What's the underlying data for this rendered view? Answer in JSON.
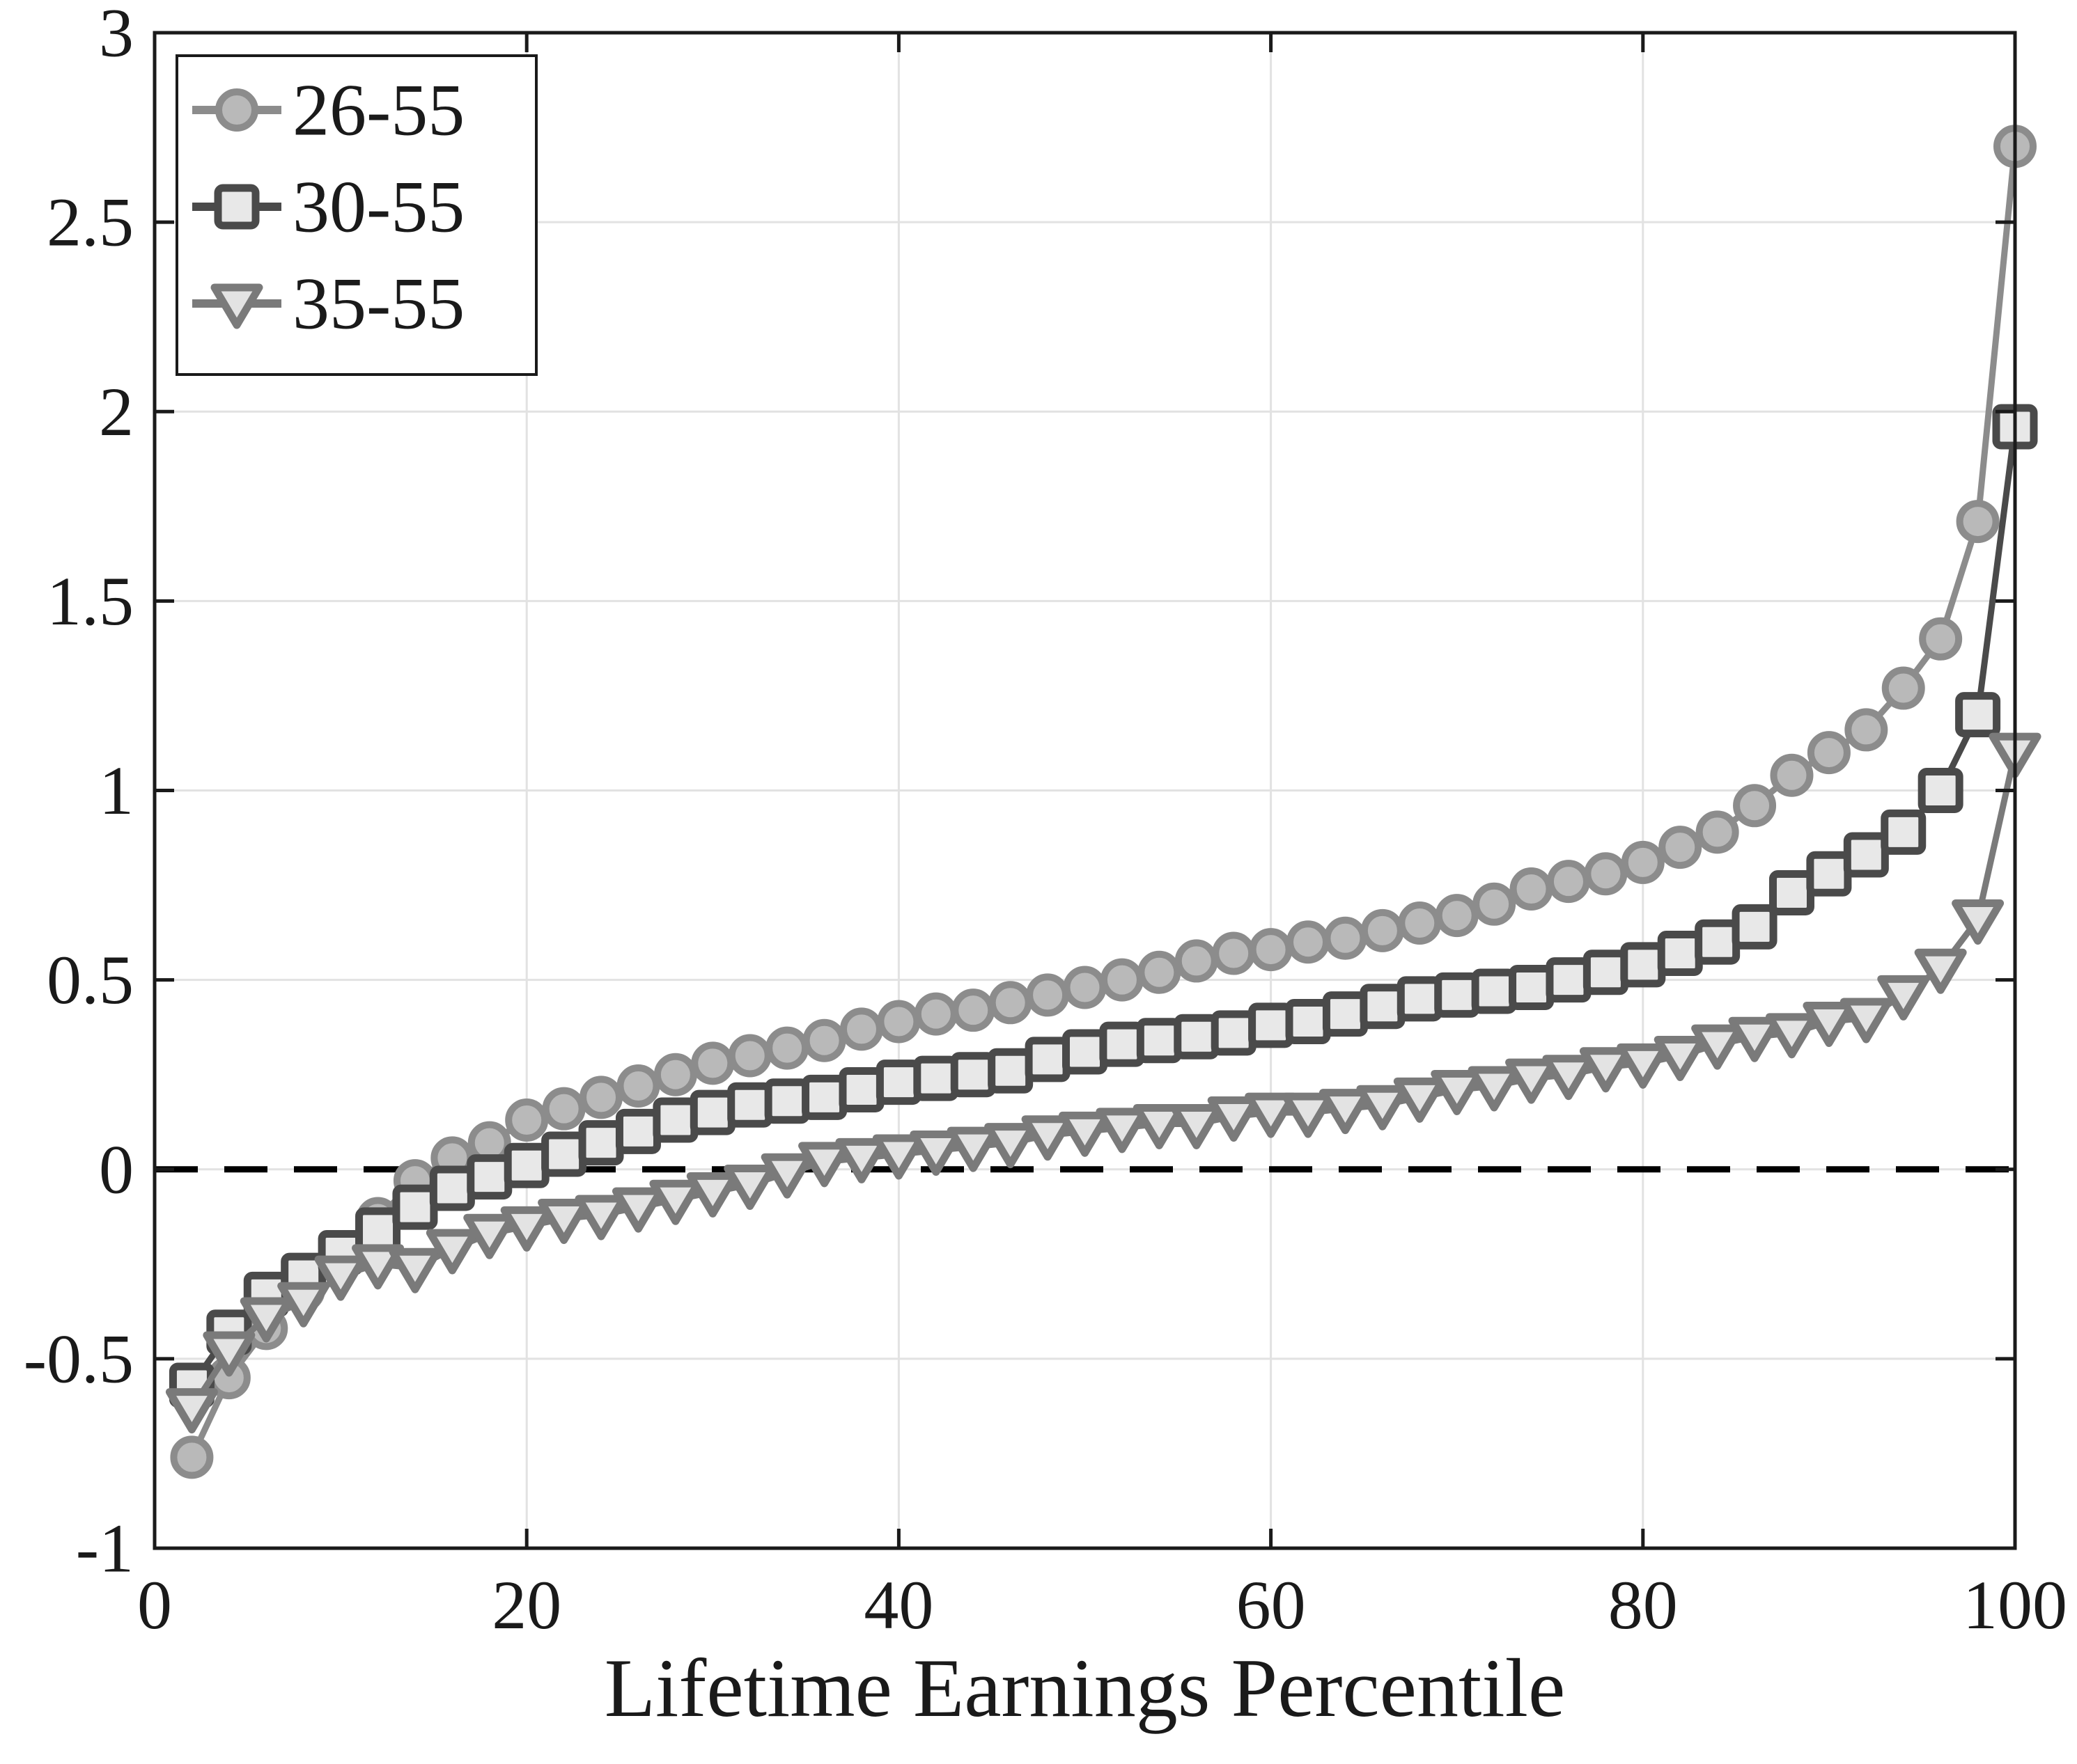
{
  "chart_data": {
    "type": "line",
    "title": "",
    "xlabel": "Lifetime Earnings Percentile",
    "ylabel": "",
    "xlim": [
      0,
      100
    ],
    "ylim": [
      -1,
      3
    ],
    "xticks": [
      0,
      20,
      40,
      60,
      80,
      100
    ],
    "yticks": [
      -1,
      -0.5,
      0,
      0.5,
      1,
      1.5,
      2,
      2.5,
      3
    ],
    "grid": true,
    "legend_position": "top-left",
    "reference_line": {
      "y": 0,
      "style": "dashed",
      "color": "#000000"
    },
    "colors": {
      "background": "#ffffff",
      "axis": "#1a1a1a",
      "grid": "#e2e2e2",
      "text": "#1a1a1a"
    },
    "x": [
      2,
      4,
      6,
      8,
      10,
      12,
      14,
      16,
      18,
      20,
      22,
      24,
      26,
      28,
      30,
      32,
      34,
      36,
      38,
      40,
      42,
      44,
      46,
      48,
      50,
      52,
      54,
      56,
      58,
      60,
      62,
      64,
      66,
      68,
      70,
      72,
      74,
      76,
      78,
      80,
      82,
      84,
      86,
      88,
      90,
      92,
      94,
      96,
      98,
      100
    ],
    "series": [
      {
        "name": "26-55",
        "marker": "circle",
        "line_color": "#8c8c8c",
        "face_color": "#b9b9b9",
        "values": [
          -0.76,
          -0.55,
          -0.42,
          -0.32,
          -0.24,
          -0.13,
          -0.03,
          0.03,
          0.07,
          0.13,
          0.16,
          0.19,
          0.22,
          0.25,
          0.28,
          0.3,
          0.32,
          0.34,
          0.37,
          0.39,
          0.41,
          0.42,
          0.44,
          0.46,
          0.48,
          0.5,
          0.52,
          0.55,
          0.57,
          0.58,
          0.6,
          0.61,
          0.63,
          0.65,
          0.67,
          0.7,
          0.74,
          0.76,
          0.78,
          0.81,
          0.85,
          0.89,
          0.96,
          1.04,
          1.1,
          1.16,
          1.27,
          1.4,
          1.71,
          2.7
        ]
      },
      {
        "name": "30-55",
        "marker": "square",
        "line_color": "#4a4a4a",
        "face_color": "#e8e8e8",
        "values": [
          -0.57,
          -0.43,
          -0.33,
          -0.28,
          -0.22,
          -0.16,
          -0.1,
          -0.05,
          -0.02,
          0.01,
          0.04,
          0.07,
          0.1,
          0.13,
          0.15,
          0.17,
          0.18,
          0.19,
          0.21,
          0.23,
          0.24,
          0.25,
          0.26,
          0.29,
          0.31,
          0.33,
          0.34,
          0.35,
          0.36,
          0.38,
          0.39,
          0.41,
          0.43,
          0.45,
          0.46,
          0.47,
          0.48,
          0.5,
          0.52,
          0.54,
          0.57,
          0.6,
          0.64,
          0.73,
          0.78,
          0.83,
          0.89,
          1.0,
          1.2,
          1.96
        ]
      },
      {
        "name": "35-55",
        "marker": "triangle-down",
        "line_color": "#7a7a7a",
        "face_color": "#e3e3e3",
        "values": [
          -0.63,
          -0.48,
          -0.39,
          -0.35,
          -0.28,
          -0.25,
          -0.26,
          -0.21,
          -0.17,
          -0.15,
          -0.13,
          -0.12,
          -0.1,
          -0.08,
          -0.06,
          -0.04,
          -0.01,
          0.02,
          0.03,
          0.04,
          0.05,
          0.06,
          0.07,
          0.09,
          0.1,
          0.11,
          0.12,
          0.12,
          0.14,
          0.15,
          0.15,
          0.16,
          0.17,
          0.19,
          0.21,
          0.22,
          0.24,
          0.25,
          0.27,
          0.28,
          0.3,
          0.33,
          0.35,
          0.36,
          0.39,
          0.4,
          0.46,
          0.53,
          0.66,
          1.1
        ]
      }
    ]
  }
}
